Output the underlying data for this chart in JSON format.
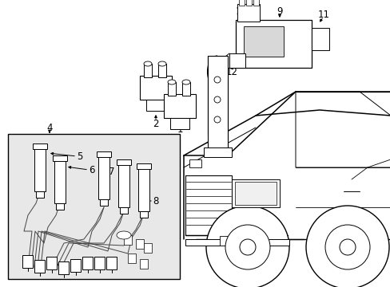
{
  "background_color": "#ffffff",
  "line_color": "#000000",
  "fig_width": 4.89,
  "fig_height": 3.6,
  "dpi": 100,
  "box_color": "#e8e8e8",
  "label_fontsize": 8.5
}
